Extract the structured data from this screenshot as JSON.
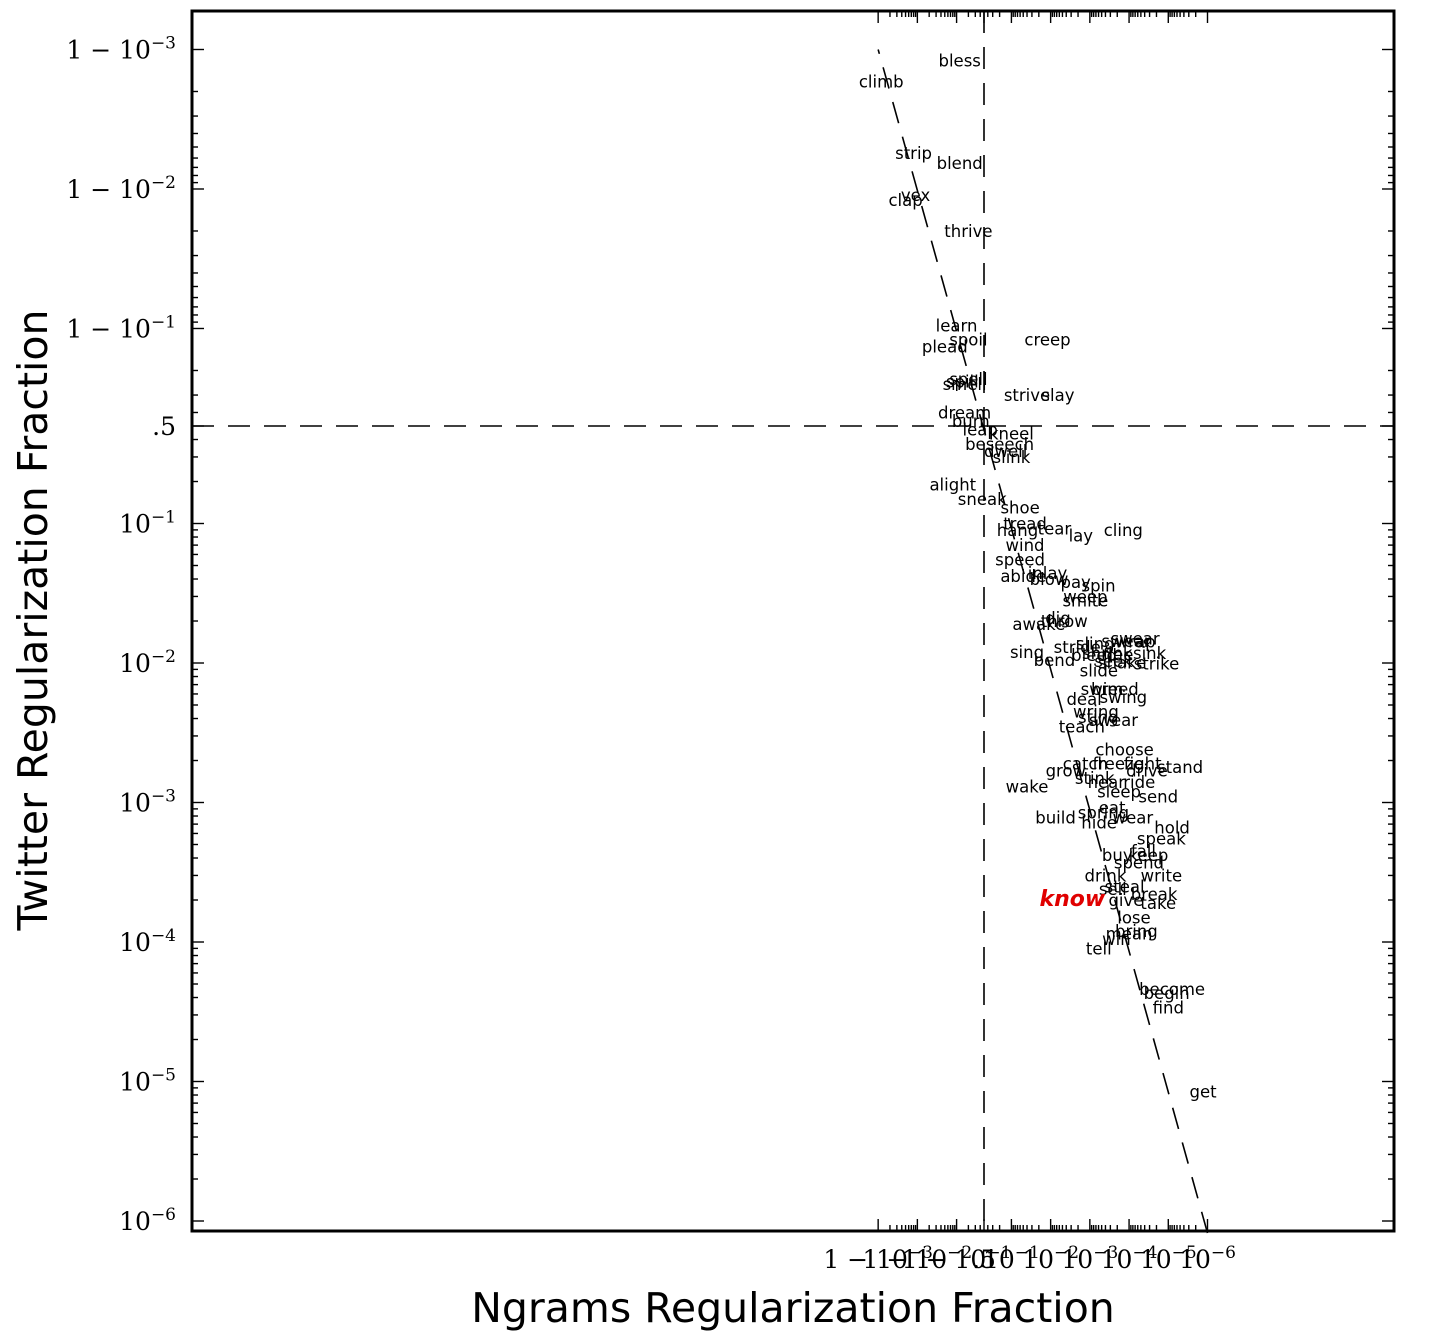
{
  "chart_data": {
    "type": "scatter",
    "xlabel": "Ngrams Regularization Fraction",
    "ylabel": "Twitter Regularization Fraction",
    "scale": "logit (log below 0.5, log of 1-x above 0.5)",
    "xlim": [
      1e-06,
      0.999
    ],
    "ylim": [
      1e-06,
      0.999
    ],
    "grid": false,
    "reference_lines": {
      "diagonal": "y = x (dashed)",
      "vertical": "x = .5 (dashed)",
      "horizontal": "y = .5 (dashed)"
    },
    "tick_labels": [
      "10^-6",
      "10^-5",
      "10^-4",
      "10^-3",
      "10^-2",
      "10^-1",
      ".5",
      "1-10^-1",
      "1-10^-2",
      "1-10^-3"
    ],
    "highlight": {
      "word": "know",
      "color": "#e00000"
    },
    "points": [
      {
        "word": "bless",
        "x": 0.88,
        "y": 0.9988
      },
      {
        "word": "climb",
        "x": 0.9988,
        "y": 0.9983
      },
      {
        "word": "strip",
        "x": 0.992,
        "y": 0.9945
      },
      {
        "word": "blend",
        "x": 0.88,
        "y": 0.9935
      },
      {
        "word": "vex",
        "x": 0.991,
        "y": 0.989
      },
      {
        "word": "clap",
        "x": 0.995,
        "y": 0.988
      },
      {
        "word": "thrive",
        "x": 0.8,
        "y": 0.98
      },
      {
        "word": "learn",
        "x": 0.9,
        "y": 0.905
      },
      {
        "word": "spoil",
        "x": 0.8,
        "y": 0.88
      },
      {
        "word": "plead",
        "x": 0.95,
        "y": 0.865
      },
      {
        "word": "creep",
        "x": 0.012,
        "y": 0.88
      },
      {
        "word": "spell",
        "x": 0.8,
        "y": 0.77
      },
      {
        "word": "spill",
        "x": 0.86,
        "y": 0.76
      },
      {
        "word": "smell",
        "x": 0.84,
        "y": 0.75
      },
      {
        "word": "slay",
        "x": 0.0065,
        "y": 0.7
      },
      {
        "word": "strive",
        "x": 0.04,
        "y": 0.7
      },
      {
        "word": "dream",
        "x": 0.84,
        "y": 0.6
      },
      {
        "word": "burn",
        "x": 0.77,
        "y": 0.54
      },
      {
        "word": "leap",
        "x": 0.6,
        "y": 0.47
      },
      {
        "word": "kneel",
        "x": 0.1,
        "y": 0.44
      },
      {
        "word": "beseech",
        "x": 0.2,
        "y": 0.37
      },
      {
        "word": "dwell",
        "x": 0.14,
        "y": 0.33
      },
      {
        "word": "slink",
        "x": 0.1,
        "y": 0.3
      },
      {
        "word": "alight",
        "x": 0.92,
        "y": 0.19
      },
      {
        "word": "sneak",
        "x": 0.55,
        "y": 0.15
      },
      {
        "word": "shoe",
        "x": 0.06,
        "y": 0.13
      },
      {
        "word": "tread",
        "x": 0.045,
        "y": 0.1
      },
      {
        "word": "hang",
        "x": 0.07,
        "y": 0.09
      },
      {
        "word": "cling",
        "x": 0.00014,
        "y": 0.09
      },
      {
        "word": "lay",
        "x": 0.0017,
        "y": 0.082
      },
      {
        "word": "tear",
        "x": 0.008,
        "y": 0.092
      },
      {
        "word": "wind",
        "x": 0.045,
        "y": 0.07
      },
      {
        "word": "speed",
        "x": 0.06,
        "y": 0.055
      },
      {
        "word": "inlay",
        "x": 0.012,
        "y": 0.044
      },
      {
        "word": "blow",
        "x": 0.011,
        "y": 0.04
      },
      {
        "word": "abide",
        "x": 0.05,
        "y": 0.042
      },
      {
        "word": "spin",
        "x": 0.0006,
        "y": 0.036
      },
      {
        "word": "pay",
        "x": 0.0023,
        "y": 0.038
      },
      {
        "word": "weep",
        "x": 0.0013,
        "y": 0.03
      },
      {
        "word": "smite",
        "x": 0.0013,
        "y": 0.028
      },
      {
        "word": "throw",
        "x": 0.0045,
        "y": 0.02
      },
      {
        "word": "dig",
        "x": 0.0065,
        "y": 0.021
      },
      {
        "word": "awake",
        "x": 0.02,
        "y": 0.019
      },
      {
        "word": "swear_",
        "x": 7e-05,
        "y": 0.015
      },
      {
        "word": "wring",
        "x": 0.0007,
        "y": 0.0045
      },
      {
        "word": "sing",
        "x": 0.04,
        "y": 0.012
      },
      {
        "word": "bend",
        "x": 0.008,
        "y": 0.0105
      },
      {
        "word": "stride",
        "x": 0.0021,
        "y": 0.013
      }
    ],
    "points_part2": [
      {
        "word": "swear",
        "x": 0.00012,
        "y": 0.0144
      },
      {
        "word": "wrap",
        "x": 7e-05,
        "y": 0.0143
      },
      {
        "word": "sink",
        "x": 3e-05,
        "y": 0.0118
      },
      {
        "word": "strike",
        "x": 2e-05,
        "y": 0.0099
      },
      {
        "word": "sling",
        "x": 0.00073,
        "y": 0.0138
      },
      {
        "word": "flee",
        "x": 0.00019,
        "y": 0.0115
      },
      {
        "word": "shrink",
        "x": 0.00036,
        "y": 0.0118
      },
      {
        "word": "bleed",
        "x": 0.00078,
        "y": 0.0114
      },
      {
        "word": "shake",
        "x": 0.00015,
        "y": 0.0101
      },
      {
        "word": "seek",
        "x": 0.00025,
        "y": 0.0103
      },
      {
        "word": "slide",
        "x": 0.00059,
        "y": 0.0088
      },
      {
        "word": "breed",
        "x": 0.00023,
        "y": 0.0065
      },
      {
        "word": "swim",
        "x": 0.00049,
        "y": 0.0065
      },
      {
        "word": "swing",
        "x": 0.00014,
        "y": 0.0057
      },
      {
        "word": "deal",
        "x": 0.0014,
        "y": 0.0055
      },
      {
        "word": "sting",
        "x": 0.00061,
        "y": 0.0041
      },
      {
        "word": "swear2",
        "x": 0.00025,
        "y": 0.0039
      },
      {
        "word": "teach",
        "x": 0.0016,
        "y": 0.0035
      },
      {
        "word": "stand",
        "x": 5e-06,
        "y": 0.0018
      },
      {
        "word": "choose",
        "x": 0.00013,
        "y": 0.0024
      },
      {
        "word": "fight",
        "x": 4.5e-05,
        "y": 0.0019
      },
      {
        "word": "freeze",
        "x": 0.00019,
        "y": 0.0019
      },
      {
        "word": "drive",
        "x": 3.5e-05,
        "y": 0.0017
      },
      {
        "word": "ride",
        "x": 5.5e-05,
        "y": 0.0014
      },
      {
        "word": "catch",
        "x": 0.0013,
        "y": 0.0019
      },
      {
        "word": "grow",
        "x": 0.0041,
        "y": 0.0017
      },
      {
        "word": "stink",
        "x": 0.00075,
        "y": 0.0015
      },
      {
        "word": "hear",
        "x": 0.00038,
        "y": 0.0014
      },
      {
        "word": "sleep",
        "x": 0.00018,
        "y": 0.0012
      },
      {
        "word": "send",
        "x": 1.8e-05,
        "y": 0.0011
      },
      {
        "word": "wake",
        "x": 0.04,
        "y": 0.0013
      },
      {
        "word": "eat",
        "x": 0.00027,
        "y": 0.00092
      },
      {
        "word": "spring",
        "x": 0.00045,
        "y": 0.00085
      },
      {
        "word": "wear",
        "x": 8e-05,
        "y": 0.00078
      },
      {
        "word": "hide",
        "x": 0.00058,
        "y": 0.00072
      },
      {
        "word": "build",
        "x": 0.0075,
        "y": 0.00078
      },
      {
        "word": "hold",
        "x": 8e-06,
        "y": 0.00066
      },
      {
        "word": "speak",
        "x": 1.5e-05,
        "y": 0.00055
      },
      {
        "word": "fall",
        "x": 4.3e-05,
        "y": 0.00045
      },
      {
        "word": "keep",
        "x": 3.2e-05,
        "y": 0.00042
      },
      {
        "word": "spend",
        "x": 5.6e-05,
        "y": 0.00037
      },
      {
        "word": "buy",
        "x": 0.0002,
        "y": 0.00042
      },
      {
        "word": "write",
        "x": 1.5e-05,
        "y": 0.0003
      },
      {
        "word": "drink",
        "x": 0.0004,
        "y": 0.0003
      },
      {
        "word": "steal",
        "x": 0.00013,
        "y": 0.00025
      },
      {
        "word": "sell",
        "x": 0.00026,
        "y": 0.00024
      },
      {
        "word": "break",
        "x": 2.3e-05,
        "y": 0.00022
      },
      {
        "word": "give",
        "x": 0.00012,
        "y": 0.0002
      },
      {
        "word": "take",
        "x": 1.8e-05,
        "y": 0.00019
      },
      {
        "word": "know",
        "x": 0.0028,
        "y": 0.0002
      },
      {
        "word": "lose",
        "x": 7.5e-05,
        "y": 0.00015
      },
      {
        "word": "bring",
        "x": 6.5e-05,
        "y": 0.00012
      },
      {
        "word": "mean",
        "x": 0.0001,
        "y": 0.000115
      },
      {
        "word": "win",
        "x": 0.00021,
        "y": 0.000105
      },
      {
        "word": "tell",
        "x": 0.00059,
        "y": 9e-05
      },
      {
        "word": "become",
        "x": 8e-06,
        "y": 4.6e-05
      },
      {
        "word": "begin",
        "x": 1.1e-05,
        "y": 4.3e-05
      },
      {
        "word": "find",
        "x": 1e-05,
        "y": 3.4e-05
      },
      {
        "word": "get",
        "x": 1.3e-06,
        "y": 8.5e-06
      }
    ]
  }
}
